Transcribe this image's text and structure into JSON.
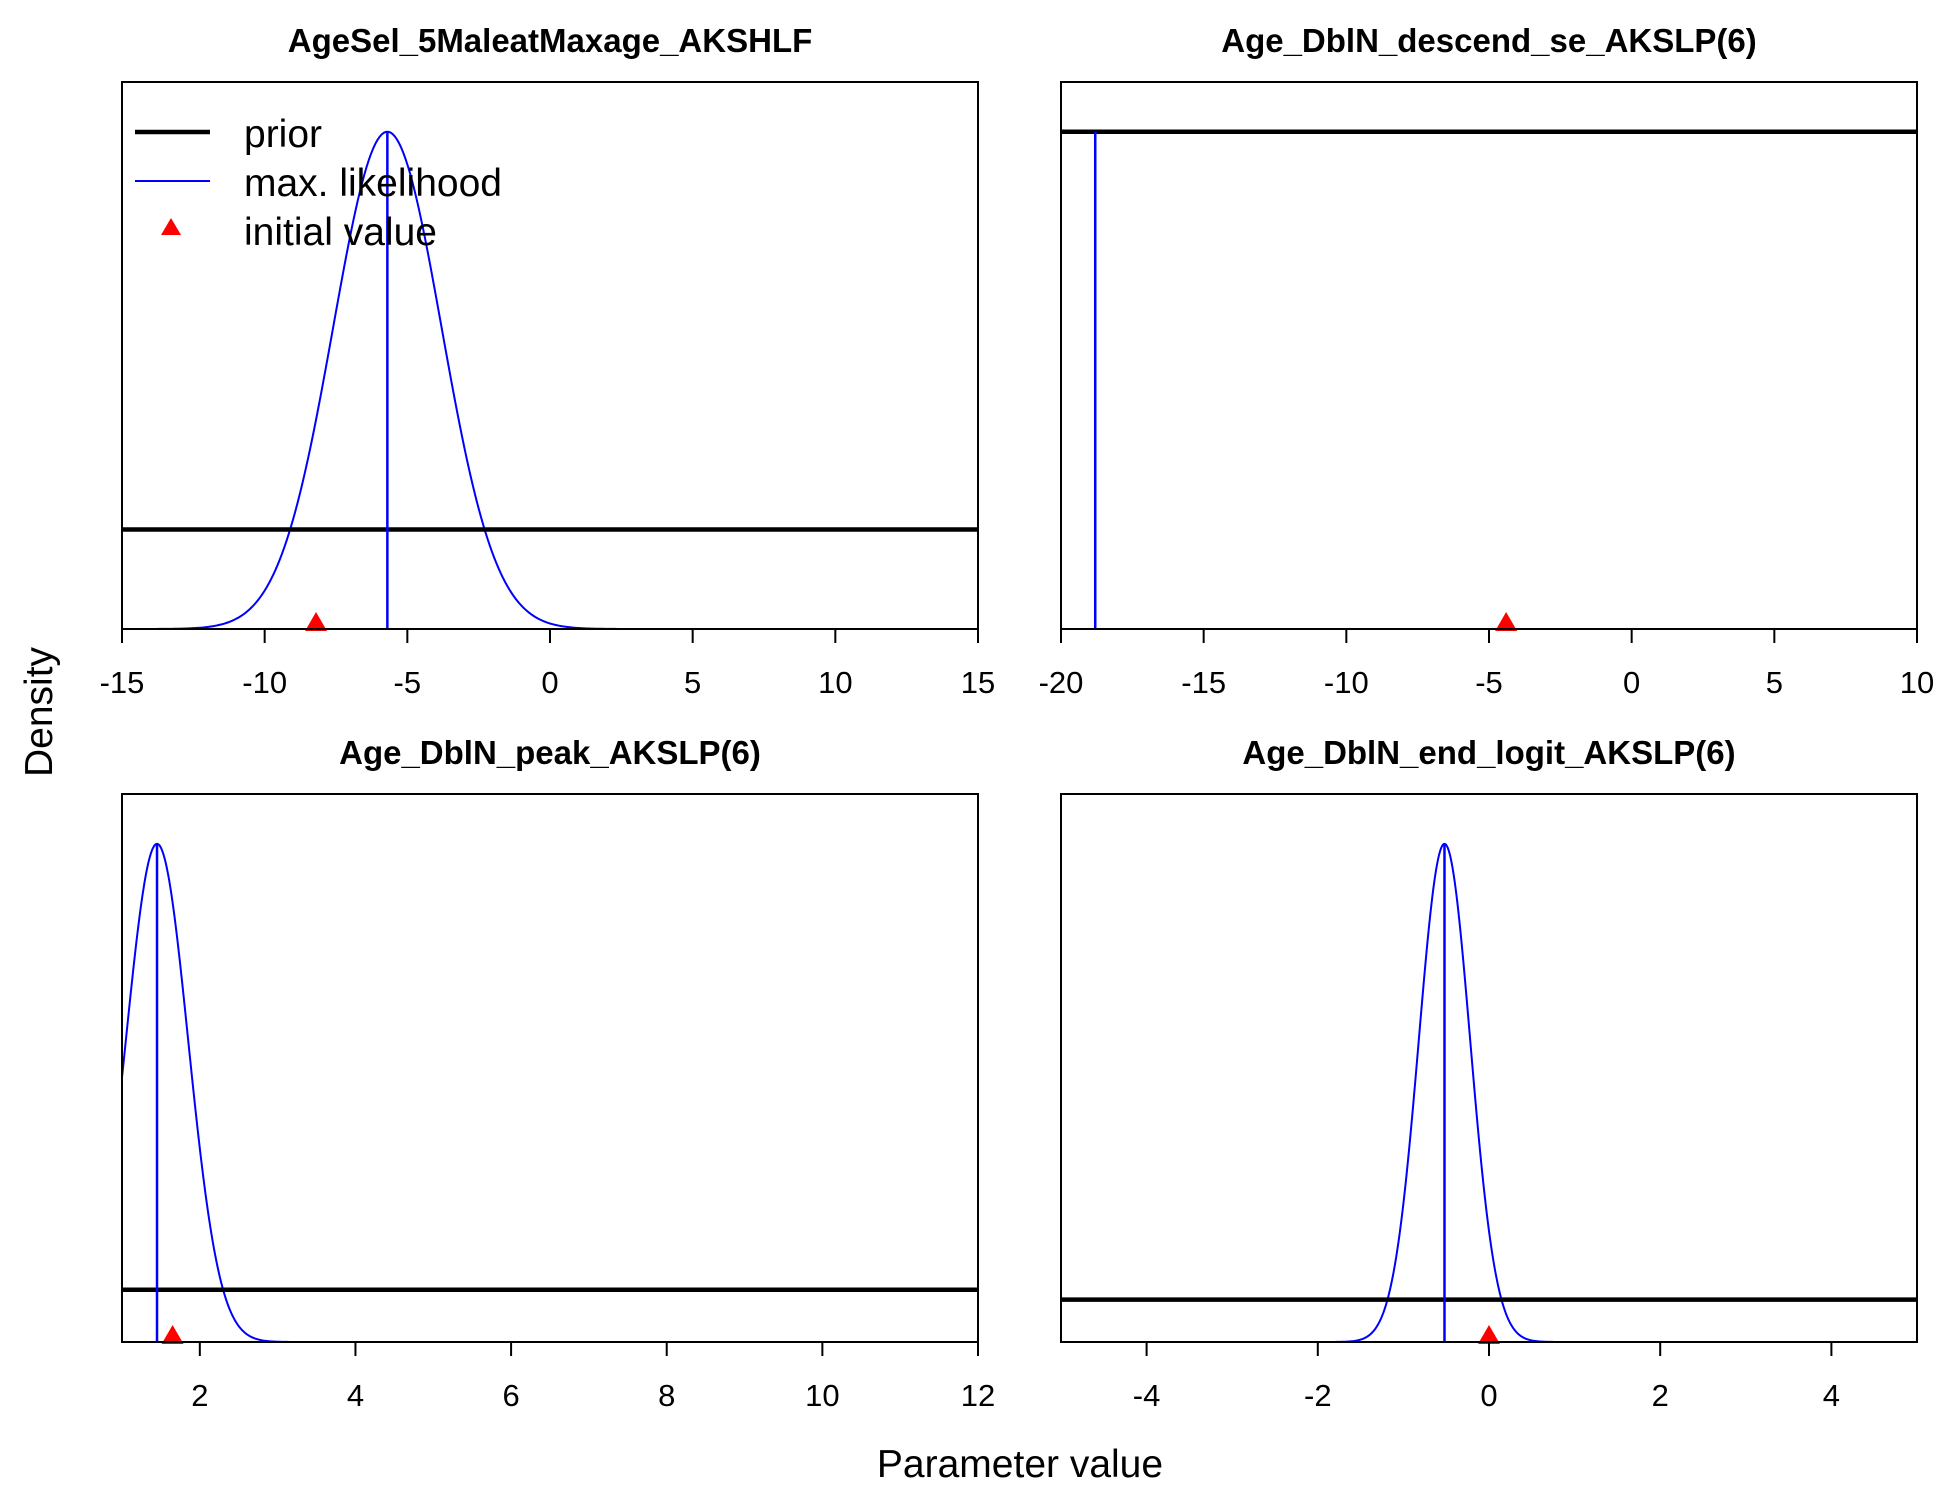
{
  "figure": {
    "xlabel": "Parameter value",
    "ylabel": "Density"
  },
  "legend": {
    "placement": "top-left of first panel",
    "entries": [
      {
        "label": "prior",
        "color": "#000000",
        "symbol": "thick-line"
      },
      {
        "label": "max. likelihood",
        "color": "#0000ff",
        "symbol": "thin-line"
      },
      {
        "label": "initial value",
        "color": "#ff0000",
        "symbol": "triangle"
      }
    ]
  },
  "chart_data": [
    {
      "type": "line",
      "title": "AgeSel_5MaleatMaxage_AKSHLF",
      "xlim": [
        -15,
        15
      ],
      "xticks": [
        -15,
        -10,
        -5,
        0,
        5,
        10,
        15
      ],
      "xtick_labels": [
        "-15",
        "-10",
        "-5",
        "0",
        "5",
        "10",
        "15"
      ],
      "ylim": [
        0,
        1.1
      ],
      "prior": {
        "kind": "uniform",
        "level": 0.2
      },
      "max_likelihood": {
        "kind": "normal",
        "mean": -5.7,
        "sd": 1.9,
        "peak": 1.0,
        "x_range": [
          -15,
          3.2
        ]
      },
      "mle_value": -5.7,
      "initial_value": -8.2
    },
    {
      "type": "line",
      "title": "Age_DblN_descend_se_AKSLP(6)",
      "xlim": [
        -20,
        10
      ],
      "xticks": [
        -20,
        -15,
        -10,
        -5,
        0,
        5,
        10
      ],
      "xtick_labels": [
        "-20",
        "-15",
        "-10",
        "-5",
        "0",
        "5",
        "10"
      ],
      "ylim": [
        0,
        1.1
      ],
      "prior": {
        "kind": "uniform",
        "level": 1.0
      },
      "max_likelihood": {
        "kind": "flat",
        "level": 1.0,
        "x_range": [
          -20,
          10
        ]
      },
      "mle_value": -18.8,
      "initial_value": -4.4
    },
    {
      "type": "line",
      "title": "Age_DblN_peak_AKSLP(6)",
      "xlim": [
        1,
        12
      ],
      "xticks": [
        2,
        4,
        6,
        8,
        10,
        12
      ],
      "xtick_labels": [
        "2",
        "4",
        "6",
        "8",
        "10",
        "12"
      ],
      "ylim": [
        0,
        1.1
      ],
      "prior": {
        "kind": "uniform",
        "level": 0.105
      },
      "max_likelihood": {
        "kind": "normal",
        "mean": 1.45,
        "sd": 0.4,
        "peak": 1.0,
        "x_range": [
          1,
          3.6
        ]
      },
      "mle_value": 1.45,
      "initial_value": 1.65
    },
    {
      "type": "line",
      "title": "Age_DblN_end_logit_AKSLP(6)",
      "xlim": [
        -5,
        5
      ],
      "xticks": [
        -4,
        -2,
        0,
        2,
        4
      ],
      "xtick_labels": [
        "-4",
        "-2",
        "0",
        "2",
        "4"
      ],
      "ylim": [
        0,
        1.1
      ],
      "prior": {
        "kind": "uniform",
        "level": 0.085
      },
      "max_likelihood": {
        "kind": "normal",
        "mean": -0.52,
        "sd": 0.3,
        "peak": 1.0,
        "x_range": [
          -1.9,
          0.8
        ]
      },
      "mle_value": -0.52,
      "initial_value": 0.0
    }
  ]
}
